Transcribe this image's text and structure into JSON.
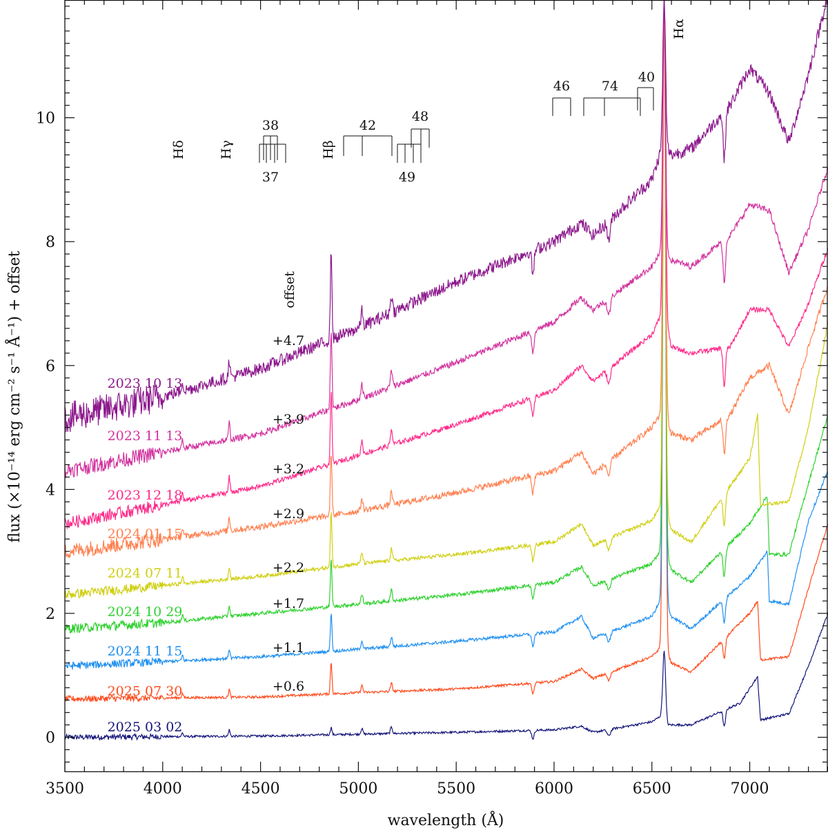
{
  "chart_data": {
    "type": "line",
    "title": "",
    "xlabel": "wavelength (Å)",
    "ylabel": "flux (×10⁻¹⁴ erg cm⁻² s⁻¹ Å⁻¹) + offset",
    "xlim": [
      3500,
      7400
    ],
    "ylim": [
      -0.55,
      11.9
    ],
    "x_ticks": [
      3500,
      4000,
      4500,
      5000,
      5500,
      6000,
      6500,
      7000
    ],
    "y_ticks": [
      0,
      2,
      4,
      6,
      8,
      10
    ],
    "offset_header": "offset",
    "series": [
      {
        "name": "2025 03 02",
        "color": "#14147a",
        "offset": "",
        "offset_value": 0.0,
        "knots": [
          [
            3500,
            0.0
          ],
          [
            4500,
            0.02
          ],
          [
            5000,
            0.05
          ],
          [
            5500,
            0.08
          ],
          [
            6000,
            0.12
          ],
          [
            6140,
            0.18
          ],
          [
            6200,
            0.08
          ],
          [
            6500,
            0.25
          ],
          [
            6550,
            0.35
          ],
          [
            6580,
            0.2
          ],
          [
            6700,
            0.2
          ],
          [
            6950,
            0.55
          ],
          [
            7040,
            0.98
          ],
          [
            7055,
            0.28
          ],
          [
            7200,
            0.38
          ],
          [
            7300,
            1.15
          ],
          [
            7400,
            2.0
          ]
        ],
        "line_peak": 1.4,
        "noise": 0.018
      },
      {
        "name": "2025 07 30",
        "color": "#ff4a1c",
        "offset": "+0.6",
        "offset_value": 0.6,
        "knots": [
          [
            3500,
            0.62
          ],
          [
            4500,
            0.65
          ],
          [
            5000,
            0.72
          ],
          [
            5500,
            0.78
          ],
          [
            6000,
            0.9
          ],
          [
            6140,
            1.1
          ],
          [
            6200,
            0.95
          ],
          [
            6500,
            1.3
          ],
          [
            6560,
            1.5
          ],
          [
            6600,
            1.2
          ],
          [
            6700,
            1.05
          ],
          [
            7000,
            2.0
          ],
          [
            7040,
            2.2
          ],
          [
            7055,
            1.25
          ],
          [
            7200,
            1.3
          ],
          [
            7300,
            2.4
          ],
          [
            7400,
            3.45
          ]
        ],
        "line_peak": 11.9,
        "noise": 0.02
      },
      {
        "name": "2024 11 15",
        "color": "#1e8ff0",
        "offset": "+1.1",
        "offset_value": 1.1,
        "knots": [
          [
            3500,
            1.15
          ],
          [
            4000,
            1.22
          ],
          [
            4500,
            1.3
          ],
          [
            5000,
            1.42
          ],
          [
            5500,
            1.55
          ],
          [
            6000,
            1.7
          ],
          [
            6140,
            1.95
          ],
          [
            6200,
            1.6
          ],
          [
            6500,
            1.95
          ],
          [
            6560,
            2.3
          ],
          [
            6600,
            1.95
          ],
          [
            6700,
            1.75
          ],
          [
            7000,
            2.6
          ],
          [
            7090,
            3.0
          ],
          [
            7100,
            2.2
          ],
          [
            7200,
            2.15
          ],
          [
            7300,
            3.5
          ],
          [
            7400,
            4.3
          ]
        ],
        "line_peak": 11.9,
        "noise": 0.025
      },
      {
        "name": "2024 10 29",
        "color": "#2fd12f",
        "offset": "+1.7",
        "offset_value": 1.7,
        "knots": [
          [
            3500,
            1.75
          ],
          [
            4000,
            1.85
          ],
          [
            4500,
            2.0
          ],
          [
            5000,
            2.15
          ],
          [
            5500,
            2.3
          ],
          [
            6000,
            2.5
          ],
          [
            6140,
            2.75
          ],
          [
            6200,
            2.45
          ],
          [
            6500,
            2.8
          ],
          [
            6560,
            3.1
          ],
          [
            6600,
            2.7
          ],
          [
            6700,
            2.5
          ],
          [
            7000,
            3.45
          ],
          [
            7090,
            3.9
          ],
          [
            7100,
            2.95
          ],
          [
            7200,
            2.95
          ],
          [
            7300,
            4.1
          ],
          [
            7400,
            5.2
          ]
        ],
        "line_peak": 11.9,
        "noise": 0.03
      },
      {
        "name": "2024 07 11",
        "color": "#cfcf12",
        "offset": "+2.2",
        "offset_value": 2.2,
        "knots": [
          [
            3500,
            2.3
          ],
          [
            4000,
            2.45
          ],
          [
            4500,
            2.6
          ],
          [
            5000,
            2.8
          ],
          [
            5500,
            2.95
          ],
          [
            6000,
            3.15
          ],
          [
            6140,
            3.45
          ],
          [
            6200,
            3.1
          ],
          [
            6500,
            3.5
          ],
          [
            6560,
            3.8
          ],
          [
            6600,
            3.35
          ],
          [
            6700,
            3.15
          ],
          [
            7000,
            4.5
          ],
          [
            7040,
            5.2
          ],
          [
            7055,
            3.75
          ],
          [
            7200,
            3.8
          ],
          [
            7300,
            5.0
          ],
          [
            7400,
            6.7
          ]
        ],
        "line_peak": 11.9,
        "noise": 0.03
      },
      {
        "name": "2024 01 15",
        "color": "#ff8050",
        "offset": "+2.9",
        "offset_value": 2.9,
        "knots": [
          [
            3500,
            3.0
          ],
          [
            4000,
            3.2
          ],
          [
            4500,
            3.4
          ],
          [
            5000,
            3.65
          ],
          [
            5500,
            3.95
          ],
          [
            6000,
            4.3
          ],
          [
            6140,
            4.6
          ],
          [
            6200,
            4.25
          ],
          [
            6500,
            5.0
          ],
          [
            6560,
            5.3
          ],
          [
            6600,
            4.9
          ],
          [
            6700,
            4.8
          ],
          [
            6900,
            5.2
          ],
          [
            7000,
            5.8
          ],
          [
            7100,
            6.0
          ],
          [
            7200,
            5.2
          ],
          [
            7300,
            6.3
          ],
          [
            7400,
            7.3
          ]
        ],
        "line_peak": 11.9,
        "noise": 0.05
      },
      {
        "name": "2023 12 18",
        "color": "#ff2a8a",
        "offset": "+3.2",
        "offset_value": 3.2,
        "knots": [
          [
            3500,
            3.45
          ],
          [
            4000,
            3.75
          ],
          [
            4500,
            4.05
          ],
          [
            5000,
            4.55
          ],
          [
            5500,
            5.05
          ],
          [
            6000,
            5.6
          ],
          [
            6140,
            6.0
          ],
          [
            6200,
            5.75
          ],
          [
            6500,
            6.5
          ],
          [
            6560,
            6.9
          ],
          [
            6600,
            6.3
          ],
          [
            6700,
            6.2
          ],
          [
            6900,
            6.3
          ],
          [
            7000,
            6.9
          ],
          [
            7100,
            6.9
          ],
          [
            7200,
            6.3
          ],
          [
            7300,
            7.0
          ],
          [
            7400,
            7.9
          ]
        ],
        "line_peak": 11.9,
        "noise": 0.04
      },
      {
        "name": "2023 11 13",
        "color": "#d2329e",
        "offset": "+3.9",
        "offset_value": 3.9,
        "knots": [
          [
            3500,
            4.3
          ],
          [
            4000,
            4.6
          ],
          [
            4500,
            4.9
          ],
          [
            5000,
            5.45
          ],
          [
            5500,
            6.05
          ],
          [
            6000,
            6.7
          ],
          [
            6140,
            7.1
          ],
          [
            6200,
            6.9
          ],
          [
            6500,
            7.6
          ],
          [
            6560,
            7.9
          ],
          [
            6600,
            7.7
          ],
          [
            6700,
            7.6
          ],
          [
            6900,
            8.1
          ],
          [
            7000,
            8.6
          ],
          [
            7100,
            8.5
          ],
          [
            7200,
            7.5
          ],
          [
            7300,
            8.2
          ],
          [
            7400,
            9.2
          ]
        ],
        "line_peak": 11.9,
        "noise": 0.05
      },
      {
        "name": "2023 10 13",
        "color": "#8c178c",
        "offset": "+4.7",
        "offset_value": 4.7,
        "knots": [
          [
            3500,
            5.15
          ],
          [
            4000,
            5.5
          ],
          [
            4500,
            5.95
          ],
          [
            5000,
            6.6
          ],
          [
            5500,
            7.35
          ],
          [
            6000,
            8.0
          ],
          [
            6140,
            8.3
          ],
          [
            6200,
            8.1
          ],
          [
            6500,
            9.0
          ],
          [
            6560,
            9.6
          ],
          [
            6600,
            9.4
          ],
          [
            6700,
            9.5
          ],
          [
            6900,
            10.2
          ],
          [
            7000,
            10.8
          ],
          [
            7100,
            10.4
          ],
          [
            7200,
            9.6
          ],
          [
            7300,
            10.7
          ],
          [
            7400,
            12.0
          ]
        ],
        "line_peak": 11.9,
        "noise": 0.1
      }
    ],
    "annotations": {
      "Hdelta": "Hδ",
      "Hgamma": "Hγ",
      "Hbeta": "Hβ",
      "Halpha": "Hα",
      "multiplets": [
        "38",
        "37",
        "42",
        "49",
        "48",
        "46",
        "74",
        "40"
      ]
    }
  }
}
